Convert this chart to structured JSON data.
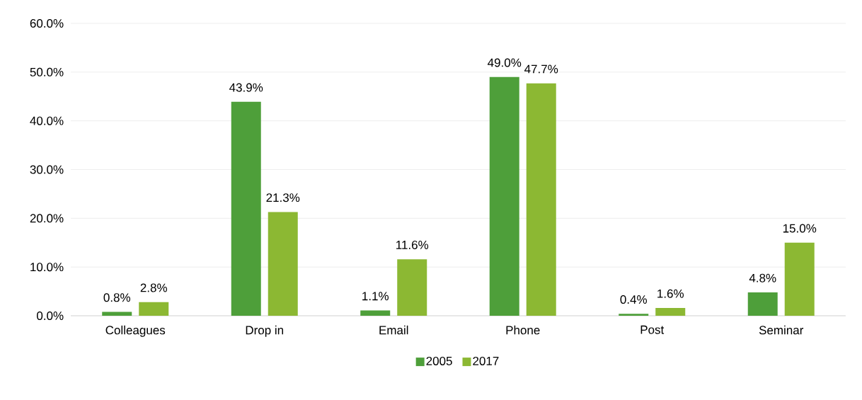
{
  "chart_data": {
    "type": "bar",
    "categories": [
      "Colleagues",
      "Drop in",
      "Email",
      "Phone",
      "Post",
      "Seminar"
    ],
    "series": [
      {
        "name": "2005",
        "color": "#4e9f3a",
        "values": [
          0.8,
          43.9,
          1.1,
          49.0,
          0.4,
          4.8
        ],
        "value_labels": [
          "0.8%",
          "43.9%",
          "1.1%",
          "49.0%",
          "0.4%",
          "4.8%"
        ]
      },
      {
        "name": "2017",
        "color": "#8cb833",
        "values": [
          2.8,
          21.3,
          11.6,
          47.7,
          1.6,
          15.0
        ],
        "value_labels": [
          "2.8%",
          "21.3%",
          "11.6%",
          "47.7%",
          "1.6%",
          "15.0%"
        ]
      }
    ],
    "ylim": [
      0,
      60
    ],
    "yticks": [
      {
        "value": 0,
        "label": "0.0%"
      },
      {
        "value": 10,
        "label": "10.0%"
      },
      {
        "value": 20,
        "label": "20.0%"
      },
      {
        "value": 30,
        "label": "30.0%"
      },
      {
        "value": 40,
        "label": "40.0%"
      },
      {
        "value": 50,
        "label": "50.0%"
      },
      {
        "value": 60,
        "label": "60.0%"
      }
    ],
    "grid": "y",
    "legend": "bottom"
  }
}
